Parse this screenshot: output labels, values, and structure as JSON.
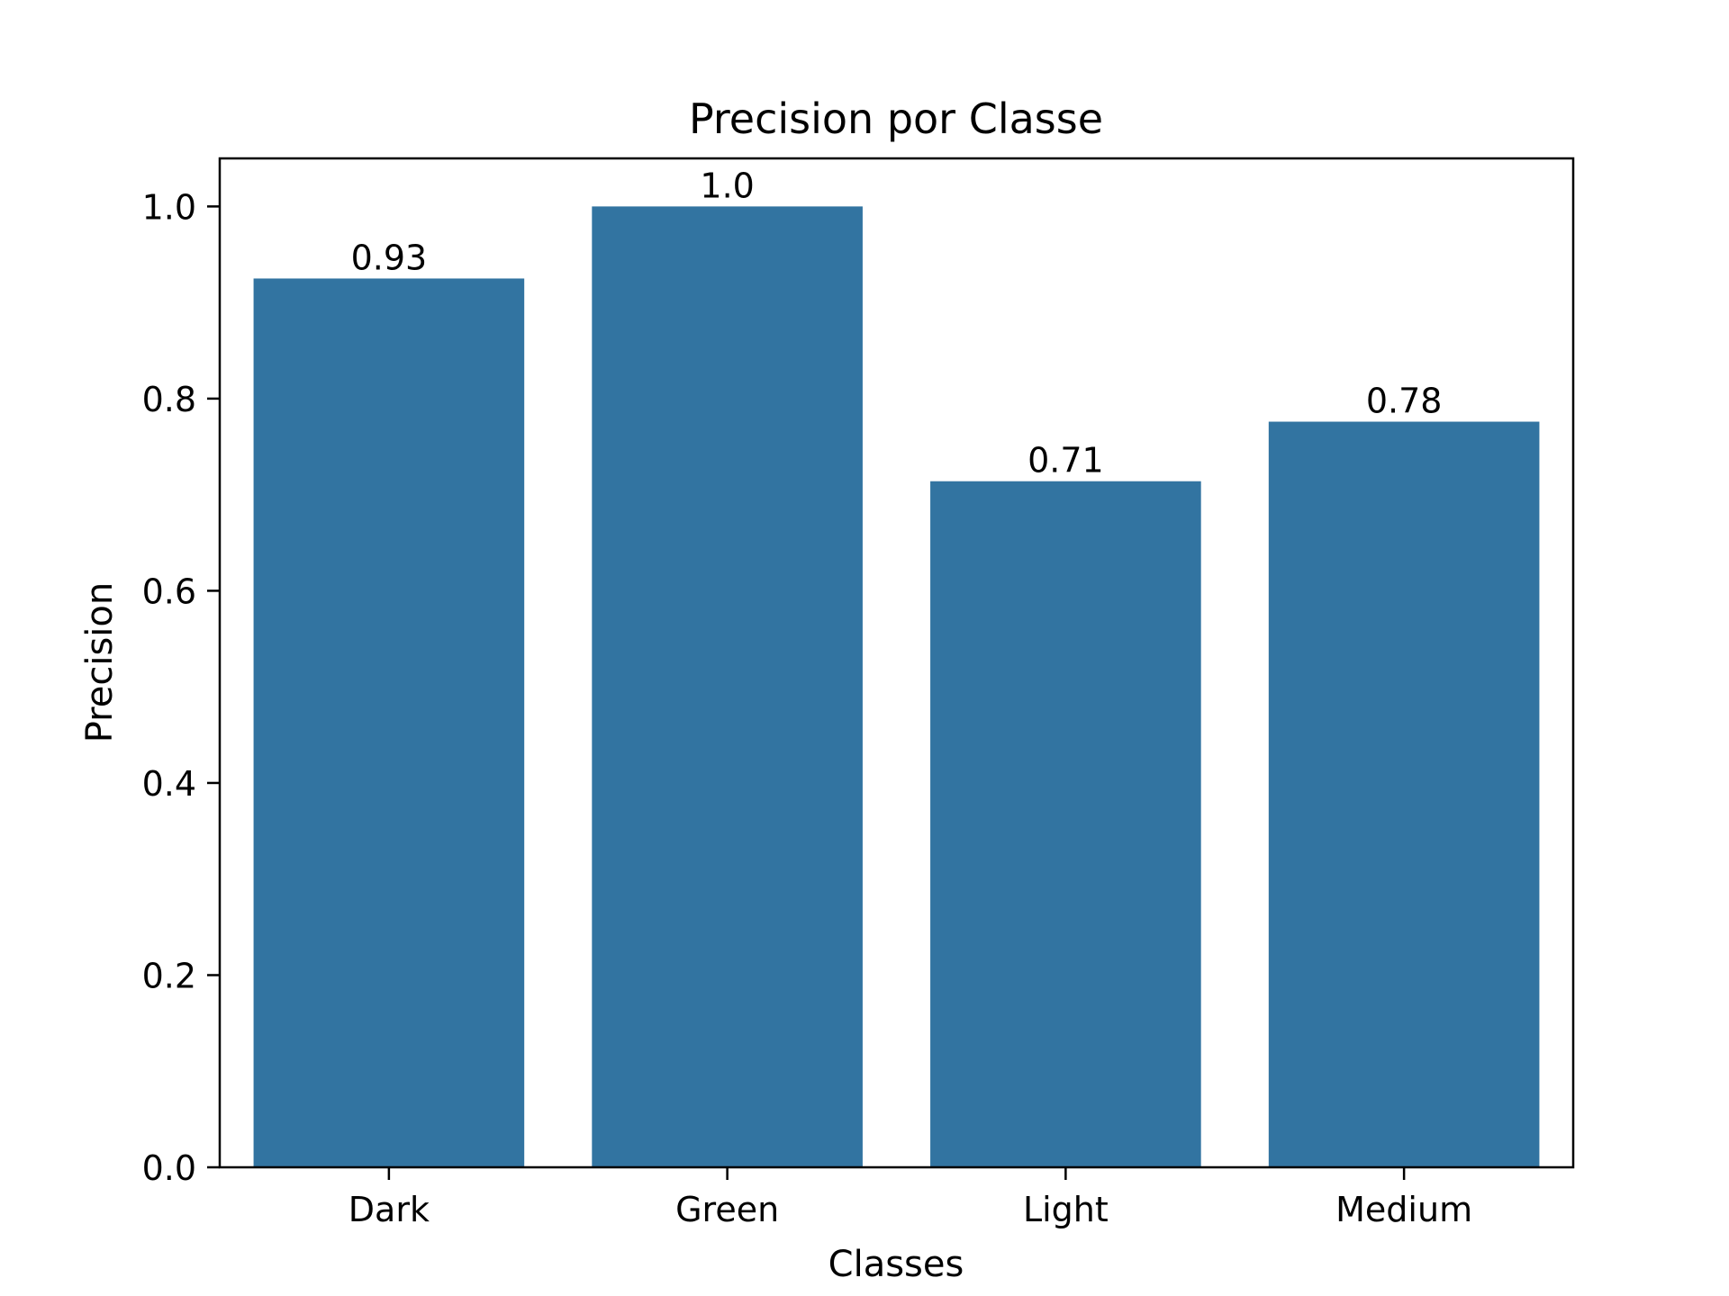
{
  "chart_data": {
    "type": "bar",
    "title": "Precision por Classe",
    "xlabel": "Classes",
    "ylabel": "Precision",
    "categories": [
      "Dark",
      "Green",
      "Light",
      "Medium"
    ],
    "values": [
      0.925,
      1.0,
      0.714,
      0.776
    ],
    "value_labels": [
      "0.93",
      "1.0",
      "0.71",
      "0.78"
    ],
    "ylim": [
      0,
      1.05
    ],
    "yticks": [
      0.0,
      0.2,
      0.4,
      0.6,
      0.8,
      1.0
    ],
    "ytick_labels": [
      "0.0",
      "0.2",
      "0.4",
      "0.6",
      "0.8",
      "1.0"
    ],
    "bar_color": "#3274a1",
    "grid": false,
    "legend": "none"
  }
}
